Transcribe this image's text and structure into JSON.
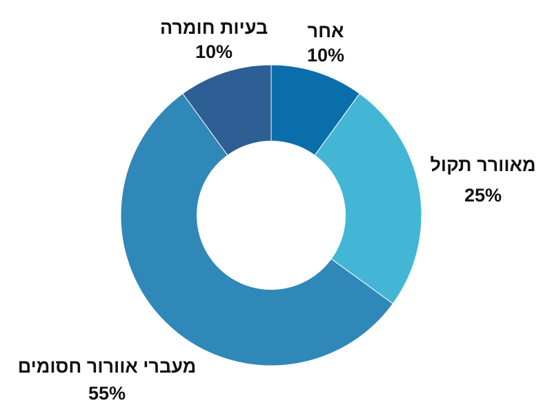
{
  "chart_data": {
    "type": "pie",
    "variant": "donut",
    "slices": [
      {
        "label": "אחר",
        "value": 10,
        "value_label": "10%",
        "color": "#0a6eaa"
      },
      {
        "label": "מאוורר תקול",
        "value": 25,
        "value_label": "25%",
        "color": "#43b6d5"
      },
      {
        "label": "מעברי אוורור חסומים",
        "value": 55,
        "value_label": "55%",
        "color": "#2f88b7"
      },
      {
        "label": "בעיות חומרה",
        "value": 10,
        "value_label": "10%",
        "color": "#2d5e94"
      }
    ],
    "legend": "none"
  }
}
